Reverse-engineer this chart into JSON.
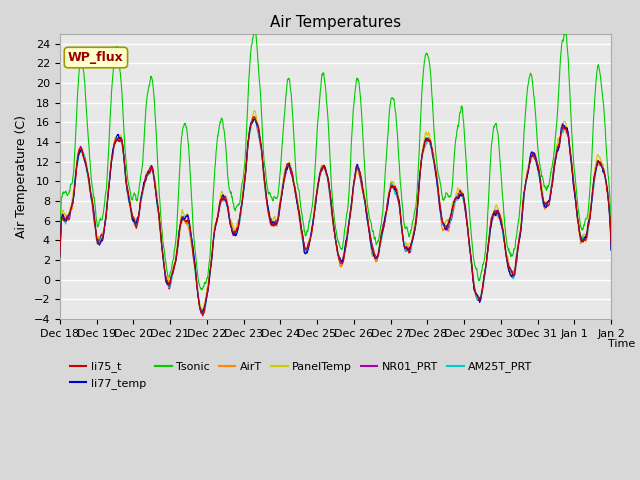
{
  "title": "Air Temperatures",
  "xlabel": "Time",
  "ylabel": "Air Temperature (C)",
  "ylim": [
    -4,
    25
  ],
  "yticks": [
    -4,
    -2,
    0,
    2,
    4,
    6,
    8,
    10,
    12,
    14,
    16,
    18,
    20,
    22,
    24
  ],
  "x_labels": [
    "Dec 18",
    "Dec 19",
    "Dec 20",
    "Dec 21",
    "Dec 22",
    "Dec 23",
    "Dec 24",
    "Dec 25",
    "Dec 26",
    "Dec 27",
    "Dec 28",
    "Dec 29",
    "Dec 30",
    "Dec 31",
    "Jan 1",
    "Jan 2"
  ],
  "legend_entries": [
    "li75_t",
    "li77_temp",
    "Tsonic",
    "AirT",
    "PanelTemp",
    "NR01_PRT",
    "AM25T_PRT"
  ],
  "legend_colors": [
    "#cc0000",
    "#0000cc",
    "#00cc00",
    "#ff8800",
    "#cccc00",
    "#aa00aa",
    "#00cccc"
  ],
  "wp_flux_box_facecolor": "#ffffcc",
  "wp_flux_text_color": "#990000",
  "wp_flux_edge_color": "#999900",
  "fig_facecolor": "#d8d8d8",
  "ax_facecolor": "#e8e8e8",
  "grid_color": "#ffffff",
  "n_points": 1440,
  "figsize": [
    6.4,
    4.8
  ],
  "dpi": 100
}
